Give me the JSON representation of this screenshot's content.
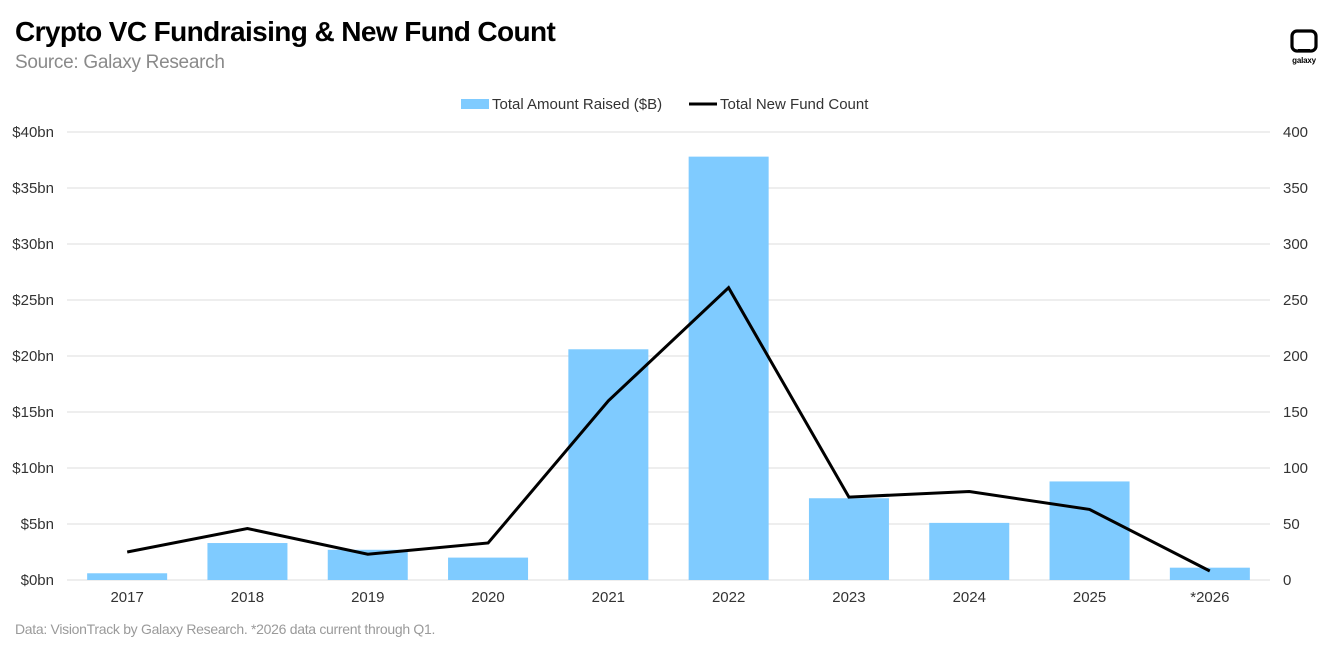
{
  "header": {
    "title": "Crypto VC Fundraising & New Fund Count",
    "subtitle": "Source: Galaxy Research"
  },
  "footer": {
    "note": "Data: VisionTrack by Galaxy Research. *2026 data current through Q1."
  },
  "logo": {
    "text": "galaxy",
    "icon": "galaxy-logo-icon"
  },
  "colors": {
    "bar": "#7fcbff",
    "line": "#000000",
    "grid": "#dedede"
  },
  "chart_data": {
    "type": "bar",
    "categories": [
      "2017",
      "2018",
      "2019",
      "2020",
      "2021",
      "2022",
      "2023",
      "2024",
      "2025",
      "*2026"
    ],
    "series": [
      {
        "name": "Total Amount Raised ($B)",
        "type": "bar",
        "axis": "left",
        "values": [
          0.6,
          3.3,
          2.7,
          2.0,
          20.6,
          37.8,
          7.3,
          5.1,
          8.8,
          1.1
        ]
      },
      {
        "name": "Total New Fund Count",
        "type": "line",
        "axis": "right",
        "values": [
          25,
          46,
          23,
          33,
          160,
          261,
          74,
          79,
          63,
          8
        ]
      }
    ],
    "y_left": {
      "min": 0,
      "max": 40,
      "ticks": [
        "$0bn",
        "$5bn",
        "$10bn",
        "$15bn",
        "$20bn",
        "$25bn",
        "$30bn",
        "$35bn",
        "$40bn"
      ]
    },
    "y_right": {
      "min": 0,
      "max": 400,
      "ticks": [
        "0",
        "50",
        "100",
        "150",
        "200",
        "250",
        "300",
        "350",
        "400"
      ]
    },
    "grid": true,
    "legend_position": "top-center"
  }
}
